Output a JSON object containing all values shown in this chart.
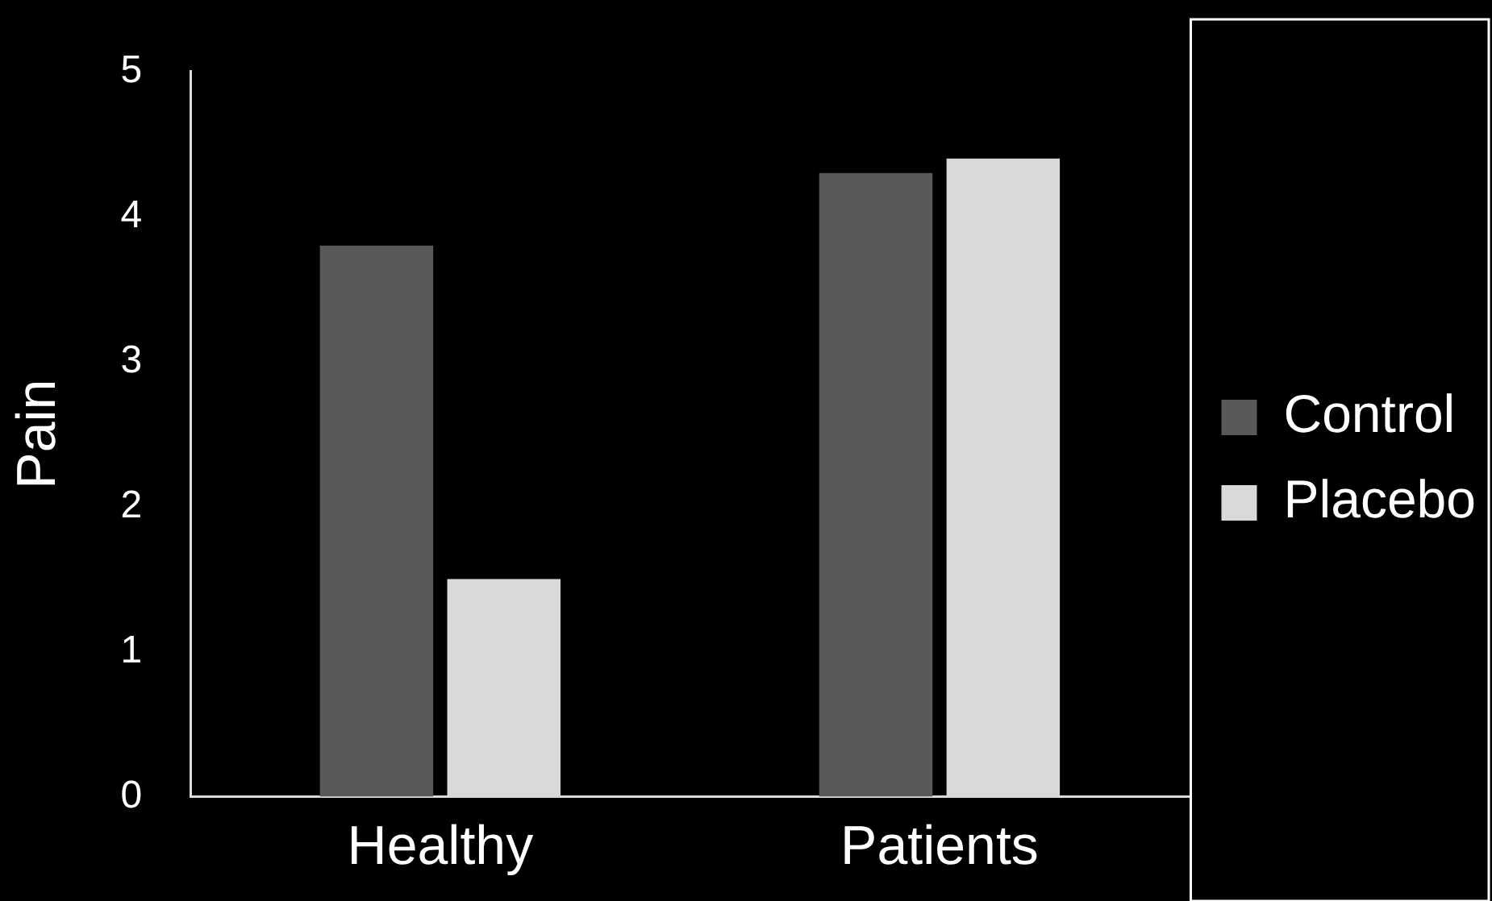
{
  "chart_data": {
    "type": "bar",
    "ylabel": "Pain",
    "categories": [
      "Healthy",
      "Patients"
    ],
    "series": [
      {
        "name": "Control",
        "color": "#595959",
        "values": [
          3.8,
          4.3
        ]
      },
      {
        "name": "Placebo",
        "color": "#d9d9d9",
        "values": [
          1.5,
          4.4
        ]
      }
    ],
    "ylim": [
      0,
      5
    ],
    "yticks": [
      0,
      1,
      2,
      3,
      4,
      5
    ],
    "grid": false,
    "legend": "right"
  }
}
